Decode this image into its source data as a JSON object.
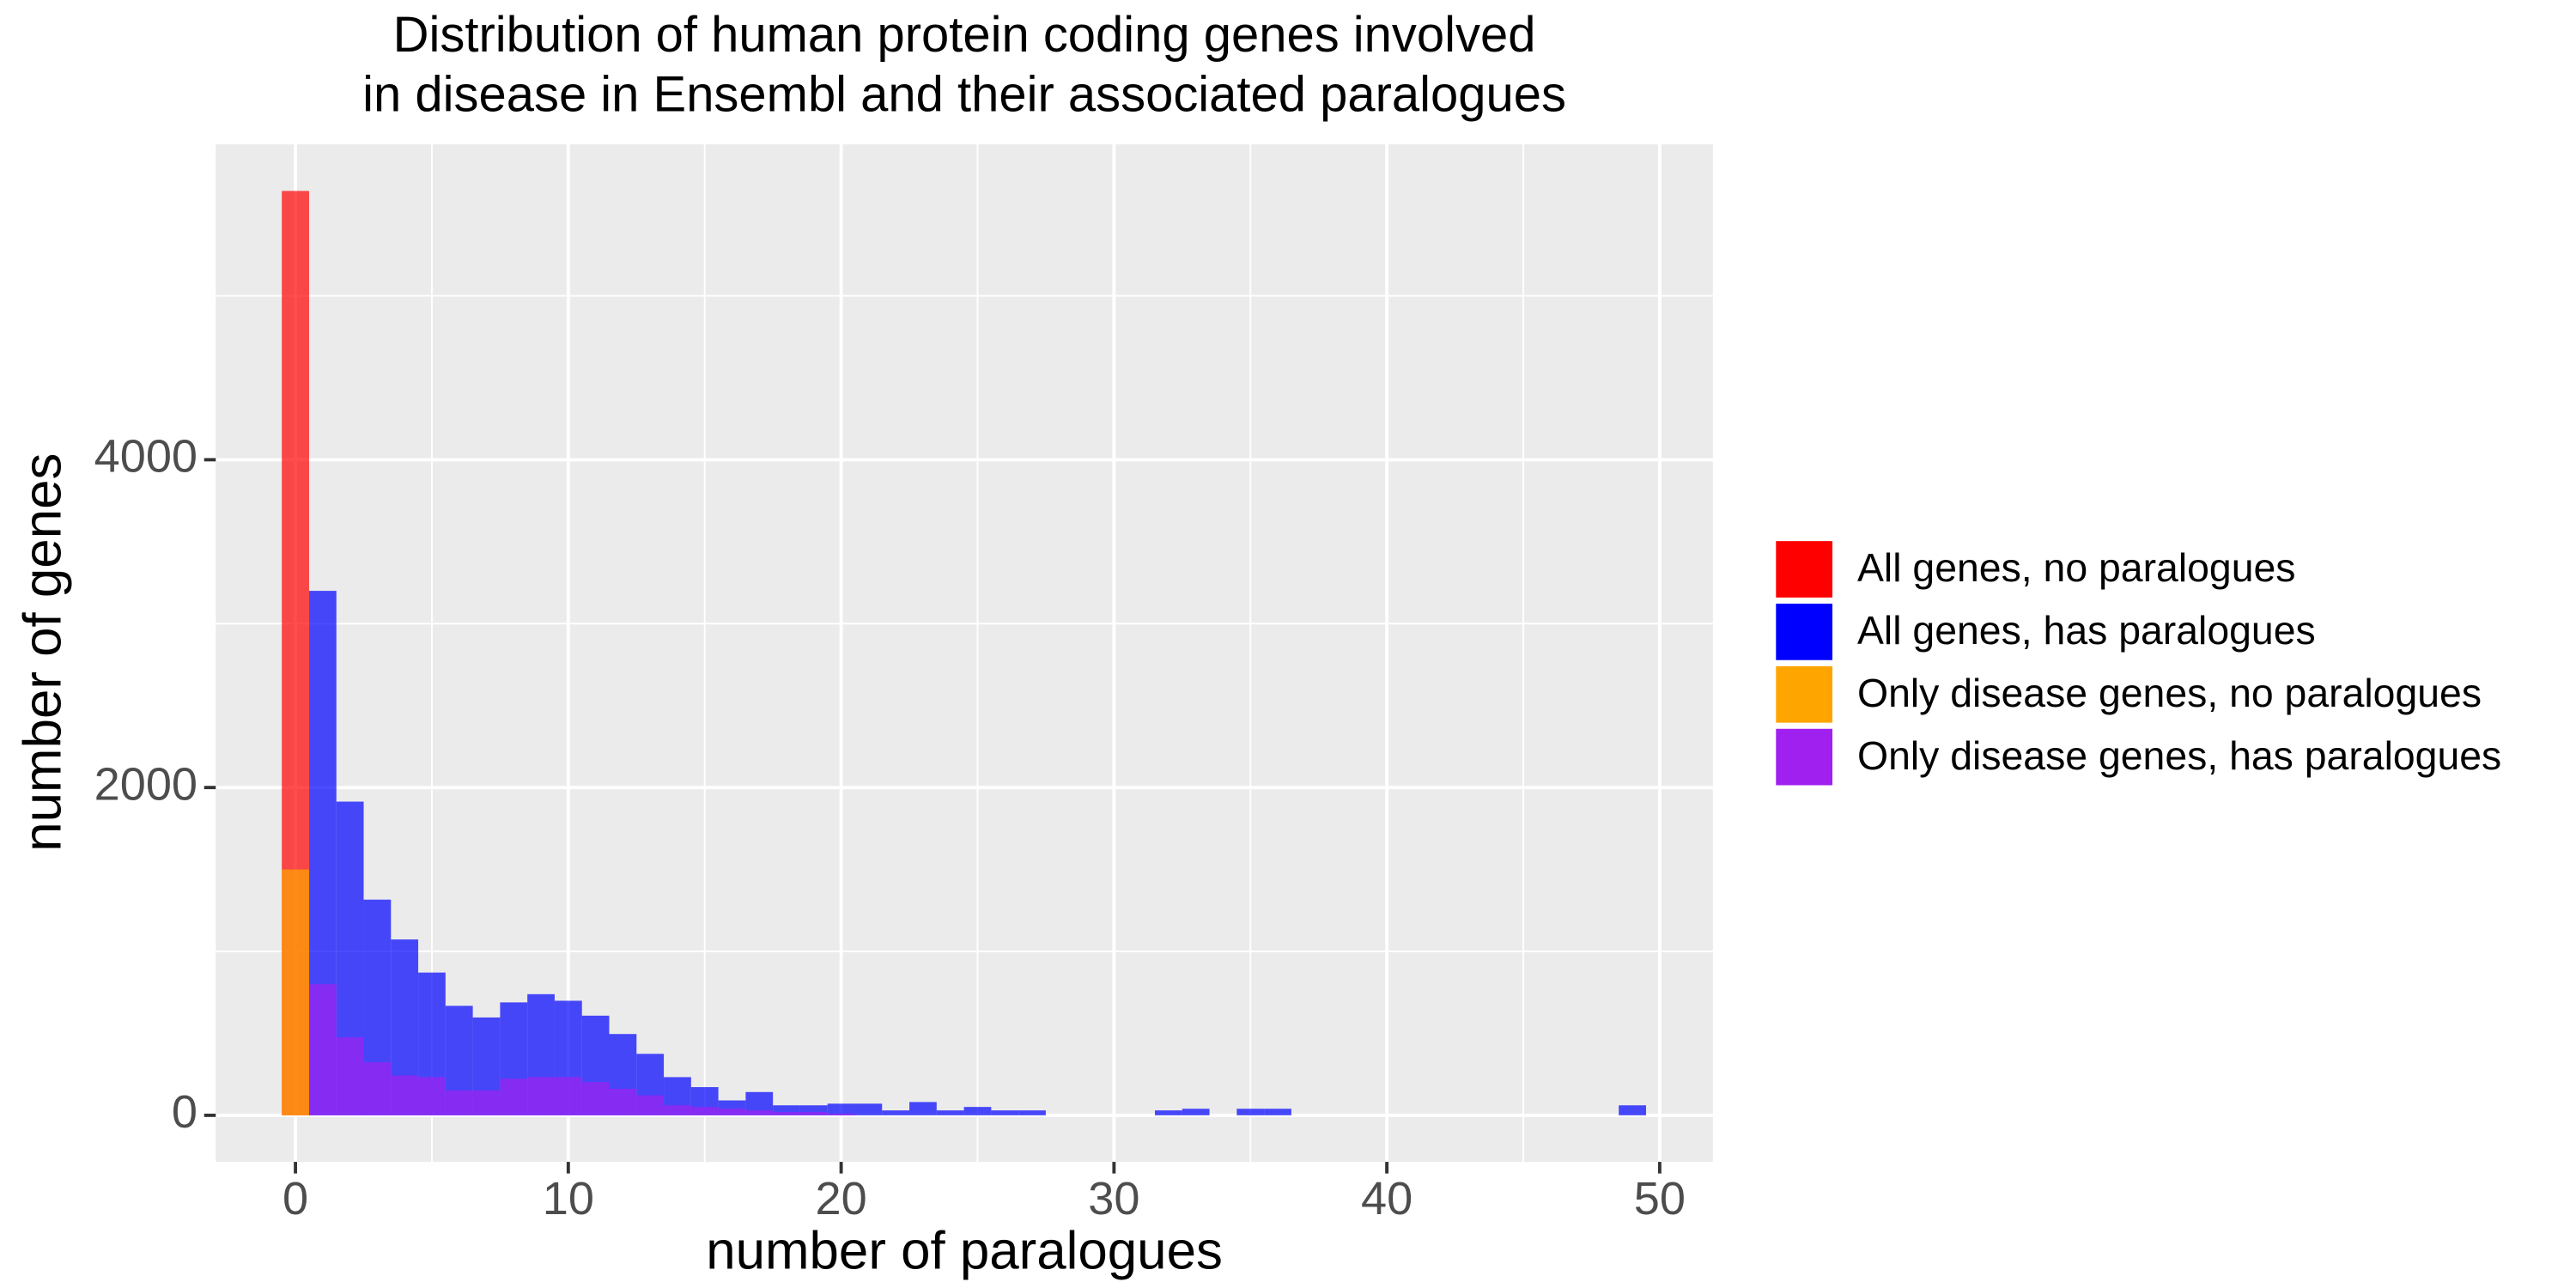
{
  "chart_data": {
    "type": "histogram",
    "title": [
      "Distribution of human protein coding genes involved",
      "in disease in Ensembl and their associated paralogues"
    ],
    "xlabel": "number of paralogues",
    "ylabel": "number of genes",
    "xlim": [
      -2.92,
      51.95
    ],
    "ylim": [
      -284,
      5924
    ],
    "xticks": [
      0,
      10,
      20,
      30,
      40,
      50
    ],
    "yticks": [
      0,
      2000,
      4000
    ],
    "xminor": [
      5,
      15,
      25,
      35,
      45
    ],
    "yminor": [
      1000,
      3000,
      5000
    ],
    "grid": true,
    "opacity": 0.7,
    "legend": "right",
    "series": [
      {
        "name": "All genes, no paralogues",
        "color": "#ff0000",
        "bins": [
          -0.5,
          0.5
        ],
        "values": [
          5640
        ]
      },
      {
        "name": "All genes, has paralogues",
        "color": "#0000ff",
        "bins": [
          0.5,
          1.5,
          2.5,
          3.5,
          4.5,
          5.5,
          6.5,
          7.5,
          8.5,
          9.5,
          10.5,
          11.5,
          12.5,
          13.5,
          14.5,
          15.5,
          16.5,
          17.5,
          18.5,
          19.5,
          20.5,
          21.5,
          22.5,
          23.5,
          24.5,
          25.5,
          26.5,
          27.5,
          28.5,
          29.5,
          30.5,
          31.5,
          32.5,
          33.5,
          34.5,
          35.5,
          36.5,
          37.5,
          38.5,
          39.5,
          40.5,
          41.5,
          42.5,
          43.5,
          44.5,
          45.5,
          46.5,
          47.5,
          48.5,
          49.5
        ],
        "values": [
          3200,
          1914,
          1316,
          1073,
          871,
          668,
          597,
          689,
          739,
          699,
          608,
          496,
          375,
          233,
          172,
          91,
          142,
          61,
          61,
          71,
          71,
          30,
          81,
          30,
          51,
          30,
          30,
          0,
          0,
          0,
          0,
          30,
          40,
          0,
          40,
          40,
          0,
          0,
          0,
          0,
          0,
          0,
          0,
          0,
          0,
          0,
          0,
          0,
          61
        ]
      },
      {
        "name": "Only disease genes, no paralogues",
        "color": "#ffa500",
        "bins": [
          -0.5,
          0.5
        ],
        "values": [
          1500
        ]
      },
      {
        "name": "Only disease genes, has paralogues",
        "color": "#a020f0",
        "bins": [
          0.5,
          1.5,
          2.5,
          3.5,
          4.5,
          5.5,
          6.5,
          7.5,
          8.5,
          9.5,
          10.5,
          11.5,
          12.5,
          13.5,
          14.5,
          15.5,
          16.5,
          17.5,
          18.5,
          19.5,
          20.5
        ],
        "values": [
          800,
          476,
          324,
          243,
          233,
          152,
          152,
          223,
          233,
          233,
          203,
          162,
          122,
          61,
          51,
          40,
          30,
          20,
          20,
          10
        ]
      }
    ]
  }
}
